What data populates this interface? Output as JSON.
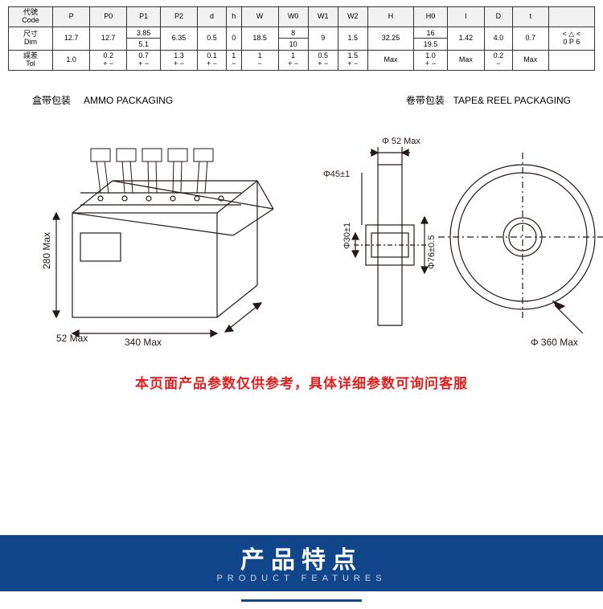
{
  "table": {
    "rowLabels": [
      "代號\nCode",
      "尺寸\nDim",
      "誤差\nTol"
    ],
    "headers": [
      "P",
      "P0",
      "P1",
      "P2",
      "d",
      "h",
      "W",
      "W0",
      "W1",
      "W2",
      "H",
      "H0",
      "I",
      "D",
      "t",
      ""
    ],
    "dim": [
      "12.7",
      "12.7",
      {
        "a": "3.85",
        "b": "5.1"
      },
      "6.35",
      "0.5",
      "0",
      "18.5",
      {
        "a": "8",
        "b": "10"
      },
      "9",
      "1.5",
      "32.25",
      {
        "a": "16",
        "b": "19.5"
      },
      "1.42",
      "4.0",
      "0.7",
      "< △ <\n0   P 6"
    ],
    "tol": [
      "1.0",
      "0.2\n+  −",
      "0.7\n+  −",
      "1.3\n+  −",
      "0.1\n+  −",
      "1\n−",
      "1\n−",
      "1\n+  −",
      "0.5\n+  −",
      "1.5\n+  −",
      "Max",
      "1.0\n+  −",
      "Max",
      "0.2\n−",
      "Max",
      ""
    ]
  },
  "label_ammo_cn": "盒带包装",
  "label_ammo_en": "AMMO PACKAGING",
  "label_reel_cn": "卷带包装",
  "label_reel_en": "TAPE& REEL PACKAGING",
  "box": {
    "h": "280 Max",
    "d": "52 Max",
    "w": "340 Max"
  },
  "reel": {
    "top": "Φ 52 Max",
    "d45": "Φ45±1",
    "d30": "Φ30±1",
    "d76": "Φ76±0.5",
    "d360": "Φ 360 Max"
  },
  "note": "本页面产品参数仅供参考，具体详细参数可询问客服",
  "banner_title": "产品特点",
  "banner_sub": "PRODUCT FEATURES",
  "colors": {
    "stroke": "#231815",
    "note": "#e02020",
    "banner": "#11468a"
  }
}
